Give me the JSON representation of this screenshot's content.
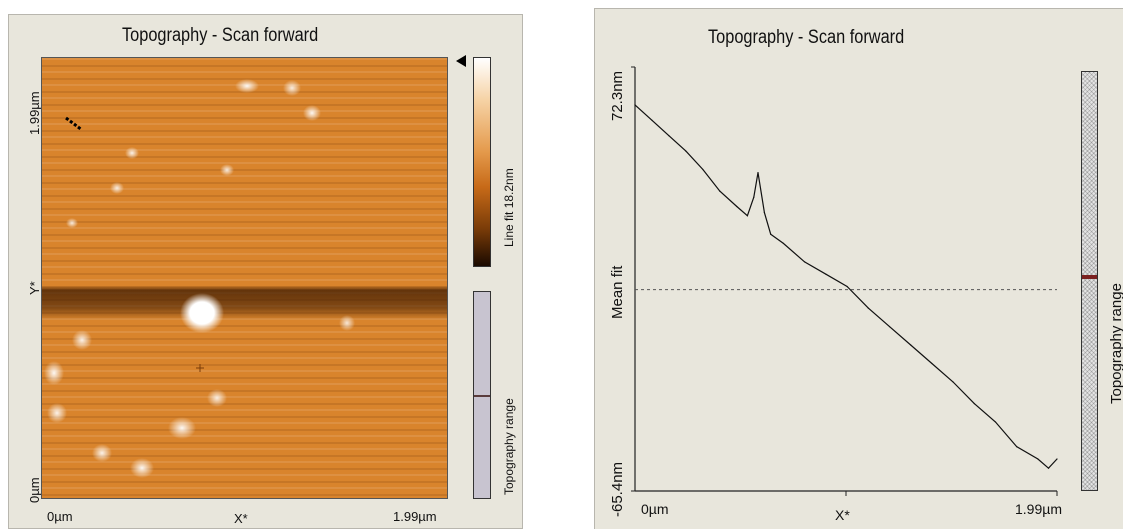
{
  "left_panel": {
    "title": "Topography - Scan forward",
    "y_axis": {
      "top": "1.99µm",
      "mid": "Y*",
      "bottom": "0µm"
    },
    "x_axis": {
      "left": "0µm",
      "mid": "X*",
      "right": "1.99µm"
    },
    "colorbar_label": "Line fit 18.2nm",
    "range_label": "Topography range"
  },
  "right_panel": {
    "title": "Topography - Scan forward",
    "y_axis": {
      "top": "72.3nm",
      "mid": "Mean fit",
      "bottom": "-65.4nm"
    },
    "x_axis": {
      "left": "0µm",
      "mid": "X*",
      "right": "1.99µm"
    },
    "range_label": "Topography range"
  },
  "chart_data": {
    "type": "line",
    "title": "Topography - Scan forward",
    "x_unit": "µm",
    "y_unit": "nm",
    "xlim": [
      0,
      1.99
    ],
    "ylim": [
      -65.4,
      72.3
    ],
    "mean_line": 0,
    "series": [
      {
        "x": [
          0,
          0.08,
          0.16,
          0.24,
          0.32,
          0.4,
          0.48,
          0.53,
          0.56,
          0.58,
          0.61,
          0.64,
          0.7,
          0.8,
          0.9,
          1.0,
          1.1,
          1.2,
          1.3,
          1.4,
          1.5,
          1.6,
          1.7,
          1.8,
          1.9,
          1.95,
          1.99
        ],
        "y": [
          60,
          55,
          50,
          45,
          39,
          32,
          27,
          24,
          30,
          38,
          25,
          18,
          15,
          9,
          5,
          1,
          -6,
          -12,
          -18,
          -24,
          -30,
          -37,
          -43,
          -51,
          -55,
          -58,
          -55
        ]
      }
    ]
  }
}
